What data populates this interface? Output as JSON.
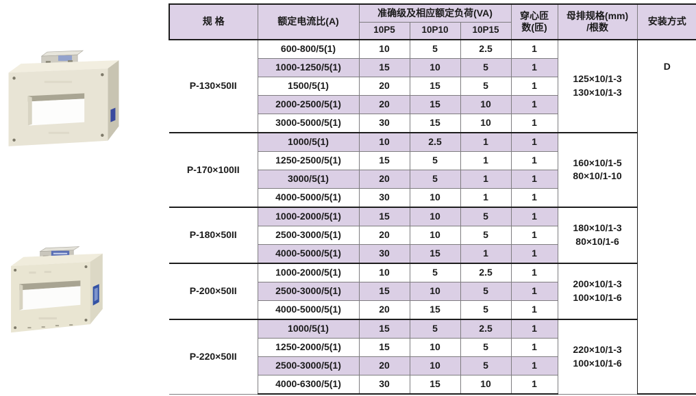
{
  "colors": {
    "header_bg": "#ddd1e7",
    "band_bg": "#dbcfe5",
    "grid_line": "#7d7b7e",
    "frame_line": "#1c1c1c",
    "photo_body_beige": "#e8e4d5",
    "photo_label_blue": "#3a4a9e"
  },
  "table": {
    "header": {
      "col_spec": "规 格",
      "col_ratio": "额定电流比(A)",
      "col_accuracy": "准确级及相应额定负荷(VA)",
      "subcols": [
        "10P5",
        "10P10",
        "10P15"
      ],
      "col_turns_l1": "穿心匝",
      "col_turns_l2": "数(匝)",
      "col_busbar_l1": "母排规格(mm)",
      "col_busbar_l2": "/根数",
      "col_install": "安装方式"
    },
    "install_method": "D",
    "groups": [
      {
        "spec": "P-130×50II",
        "busbar": [
          "125×10/1-3",
          "130×10/1-3"
        ],
        "rows": [
          {
            "ratio": "600-800/5(1)",
            "p5": "10",
            "p10": "5",
            "p15": "2.5",
            "turns": "1",
            "shaded": false
          },
          {
            "ratio": "1000-1250/5(1)",
            "p5": "15",
            "p10": "10",
            "p15": "5",
            "turns": "1",
            "shaded": true
          },
          {
            "ratio": "1500/5(1)",
            "p5": "20",
            "p10": "15",
            "p15": "5",
            "turns": "1",
            "shaded": false
          },
          {
            "ratio": "2000-2500/5(1)",
            "p5": "20",
            "p10": "15",
            "p15": "10",
            "turns": "1",
            "shaded": true
          },
          {
            "ratio": "3000-5000/5(1)",
            "p5": "30",
            "p10": "15",
            "p15": "10",
            "turns": "1",
            "shaded": false
          }
        ]
      },
      {
        "spec": "P-170×100II",
        "busbar": [
          "160×10/1-5",
          "80×10/1-10"
        ],
        "rows": [
          {
            "ratio": "1000/5(1)",
            "p5": "10",
            "p10": "2.5",
            "p15": "1",
            "turns": "1",
            "shaded": true
          },
          {
            "ratio": "1250-2500/5(1)",
            "p5": "15",
            "p10": "5",
            "p15": "1",
            "turns": "1",
            "shaded": false
          },
          {
            "ratio": "3000/5(1)",
            "p5": "20",
            "p10": "5",
            "p15": "1",
            "turns": "1",
            "shaded": true
          },
          {
            "ratio": "4000-5000/5(1)",
            "p5": "30",
            "p10": "10",
            "p15": "1",
            "turns": "1",
            "shaded": false
          }
        ]
      },
      {
        "spec": "P-180×50II",
        "busbar": [
          "180×10/1-3",
          "80×10/1-6"
        ],
        "rows": [
          {
            "ratio": "1000-2000/5(1)",
            "p5": "15",
            "p10": "10",
            "p15": "5",
            "turns": "1",
            "shaded": true
          },
          {
            "ratio": "2500-3000/5(1)",
            "p5": "20",
            "p10": "10",
            "p15": "5",
            "turns": "1",
            "shaded": false
          },
          {
            "ratio": "4000-5000/5(1)",
            "p5": "30",
            "p10": "15",
            "p15": "1",
            "turns": "1",
            "shaded": true
          }
        ]
      },
      {
        "spec": "P-200×50II",
        "busbar": [
          "200×10/1-3",
          "100×10/1-6"
        ],
        "rows": [
          {
            "ratio": "1000-2000/5(1)",
            "p5": "10",
            "p10": "5",
            "p15": "2.5",
            "turns": "1",
            "shaded": false
          },
          {
            "ratio": "2500-3000/5(1)",
            "p5": "15",
            "p10": "10",
            "p15": "5",
            "turns": "1",
            "shaded": true
          },
          {
            "ratio": "4000-5000/5(1)",
            "p5": "20",
            "p10": "15",
            "p15": "5",
            "turns": "1",
            "shaded": false
          }
        ]
      },
      {
        "spec": "P-220×50II",
        "busbar": [
          "220×10/1-3",
          "100×10/1-6"
        ],
        "rows": [
          {
            "ratio": "1000/5(1)",
            "p5": "15",
            "p10": "5",
            "p15": "2.5",
            "turns": "1",
            "shaded": true
          },
          {
            "ratio": "1250-2000/5(1)",
            "p5": "15",
            "p10": "10",
            "p15": "5",
            "turns": "1",
            "shaded": false
          },
          {
            "ratio": "2500-3000/5(1)",
            "p5": "20",
            "p10": "10",
            "p15": "5",
            "turns": "1",
            "shaded": true
          },
          {
            "ratio": "4000-6300/5(1)",
            "p5": "30",
            "p10": "15",
            "p15": "10",
            "turns": "1",
            "shaded": false
          }
        ]
      }
    ]
  }
}
